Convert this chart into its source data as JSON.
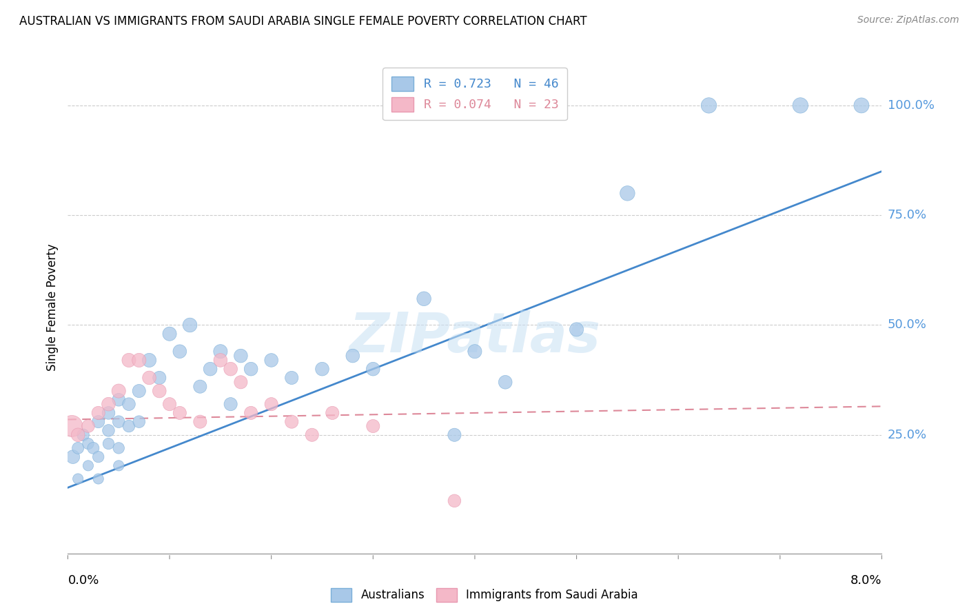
{
  "title": "AUSTRALIAN VS IMMIGRANTS FROM SAUDI ARABIA SINGLE FEMALE POVERTY CORRELATION CHART",
  "source": "Source: ZipAtlas.com",
  "ylabel": "Single Female Poverty",
  "ytick_labels": [
    "25.0%",
    "50.0%",
    "75.0%",
    "100.0%"
  ],
  "ytick_values": [
    0.25,
    0.5,
    0.75,
    1.0
  ],
  "xmin": 0.0,
  "xmax": 0.08,
  "ymin": -0.02,
  "ymax": 1.1,
  "watermark": "ZIPatlas",
  "blue_color": "#a8c8e8",
  "pink_color": "#f4b8c8",
  "blue_line_color": "#4488cc",
  "pink_line_color": "#dd8899",
  "blue_marker_edge": "#7aaed8",
  "pink_marker_edge": "#e898b0",
  "australians_x": [
    0.0005,
    0.001,
    0.001,
    0.0015,
    0.002,
    0.002,
    0.0025,
    0.003,
    0.003,
    0.003,
    0.004,
    0.004,
    0.004,
    0.005,
    0.005,
    0.005,
    0.005,
    0.006,
    0.006,
    0.007,
    0.007,
    0.008,
    0.009,
    0.01,
    0.011,
    0.012,
    0.013,
    0.014,
    0.015,
    0.016,
    0.017,
    0.018,
    0.02,
    0.022,
    0.025,
    0.028,
    0.03,
    0.035,
    0.038,
    0.04,
    0.043,
    0.05,
    0.055,
    0.063,
    0.072,
    0.078
  ],
  "australians_y": [
    0.2,
    0.22,
    0.15,
    0.25,
    0.23,
    0.18,
    0.22,
    0.28,
    0.2,
    0.15,
    0.3,
    0.26,
    0.23,
    0.33,
    0.28,
    0.22,
    0.18,
    0.32,
    0.27,
    0.35,
    0.28,
    0.42,
    0.38,
    0.48,
    0.44,
    0.5,
    0.36,
    0.4,
    0.44,
    0.32,
    0.43,
    0.4,
    0.42,
    0.38,
    0.4,
    0.43,
    0.4,
    0.56,
    0.25,
    0.44,
    0.37,
    0.49,
    0.8,
    1.0,
    1.0,
    1.0
  ],
  "australians_size": [
    200,
    150,
    120,
    160,
    140,
    120,
    150,
    170,
    140,
    120,
    180,
    160,
    140,
    180,
    160,
    140,
    120,
    180,
    160,
    190,
    160,
    210,
    190,
    210,
    200,
    220,
    190,
    200,
    210,
    190,
    200,
    200,
    200,
    190,
    200,
    200,
    200,
    220,
    190,
    210,
    200,
    210,
    240,
    260,
    260,
    250
  ],
  "saudi_x": [
    0.0004,
    0.001,
    0.002,
    0.003,
    0.004,
    0.005,
    0.006,
    0.007,
    0.008,
    0.009,
    0.01,
    0.011,
    0.013,
    0.015,
    0.016,
    0.017,
    0.018,
    0.02,
    0.022,
    0.024,
    0.026,
    0.03,
    0.038
  ],
  "saudi_y": [
    0.27,
    0.25,
    0.27,
    0.3,
    0.32,
    0.35,
    0.42,
    0.42,
    0.38,
    0.35,
    0.32,
    0.3,
    0.28,
    0.42,
    0.4,
    0.37,
    0.3,
    0.32,
    0.28,
    0.25,
    0.3,
    0.27,
    0.1
  ],
  "saudi_size": [
    500,
    200,
    180,
    190,
    200,
    210,
    210,
    210,
    200,
    200,
    190,
    190,
    190,
    200,
    200,
    190,
    190,
    190,
    190,
    190,
    190,
    190,
    180
  ],
  "blue_trend_x": [
    0.0,
    0.08
  ],
  "blue_trend_y": [
    0.13,
    0.85
  ],
  "pink_trend_x": [
    0.0,
    0.08
  ],
  "pink_trend_y": [
    0.285,
    0.315
  ]
}
